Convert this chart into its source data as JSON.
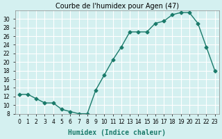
{
  "x": [
    0,
    1,
    2,
    3,
    4,
    5,
    6,
    7,
    8,
    9,
    10,
    11,
    12,
    13,
    14,
    15,
    16,
    17,
    18,
    19,
    20,
    21,
    22,
    23
  ],
  "y": [
    12.5,
    12.5,
    11.5,
    10.5,
    10.5,
    9.0,
    8.5,
    8.0,
    8.0,
    13.5,
    17.0,
    20.5,
    23.5,
    27.0,
    27.0,
    27.0,
    29.0,
    29.5,
    31.0,
    31.5,
    31.5,
    29.0,
    23.5,
    18.0
  ],
  "title": "Courbe de l'humidex pour Agen (47)",
  "xlabel": "Humidex (Indice chaleur)",
  "ylim": [
    8,
    32
  ],
  "xlim": [
    -0.5,
    23.5
  ],
  "yticks": [
    8,
    10,
    12,
    14,
    16,
    18,
    20,
    22,
    24,
    26,
    28,
    30
  ],
  "xtick_labels": [
    "0",
    "1",
    "2",
    "3",
    "4",
    "5",
    "6",
    "7",
    "8",
    "9",
    "10",
    "11",
    "12",
    "13",
    "14",
    "15",
    "16",
    "17",
    "18",
    "19",
    "20",
    "21",
    "22",
    "23"
  ],
  "line_color": "#1a7a6a",
  "marker_color": "#1a7a6a",
  "bg_color": "#d4f0f0",
  "grid_color": "#ffffff",
  "title_fontsize": 7,
  "label_fontsize": 7,
  "tick_fontsize": 5.5
}
